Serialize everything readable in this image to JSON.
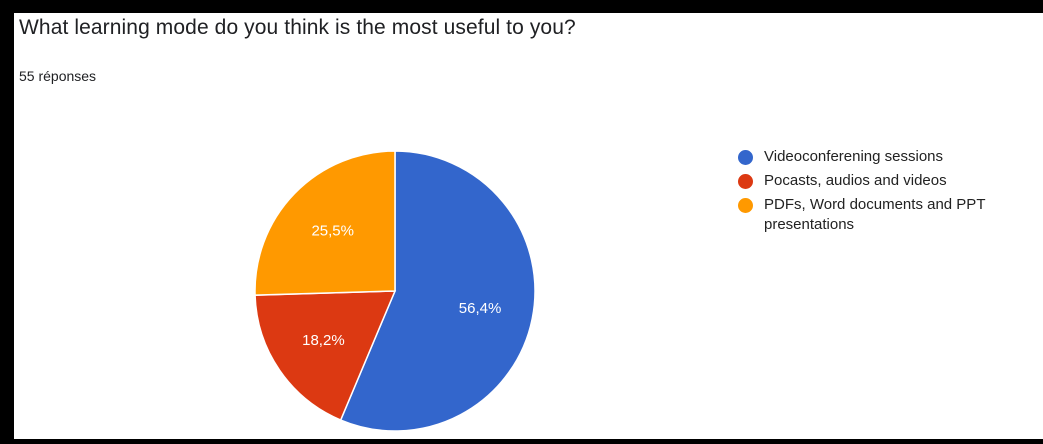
{
  "question_title": "What learning mode do you think is the most useful to you?",
  "response_count": "55 réponses",
  "chart_data": {
    "type": "pie",
    "title": "What learning mode do you think is the most useful to you?",
    "start_angle_deg": 90,
    "direction": "clockwise",
    "slices": [
      {
        "label": "Videoconferening sessions",
        "value": 56.4,
        "display": "56,4%",
        "color": "#3366cc"
      },
      {
        "label": "Pocasts, audios and videos",
        "value": 18.2,
        "display": "18,2%",
        "color": "#dc3912"
      },
      {
        "label": "PDFs, Word documents and PPT presentations",
        "value": 25.5,
        "display": "25,5%",
        "color": "#ff9900"
      }
    ],
    "legend_position": "right"
  }
}
